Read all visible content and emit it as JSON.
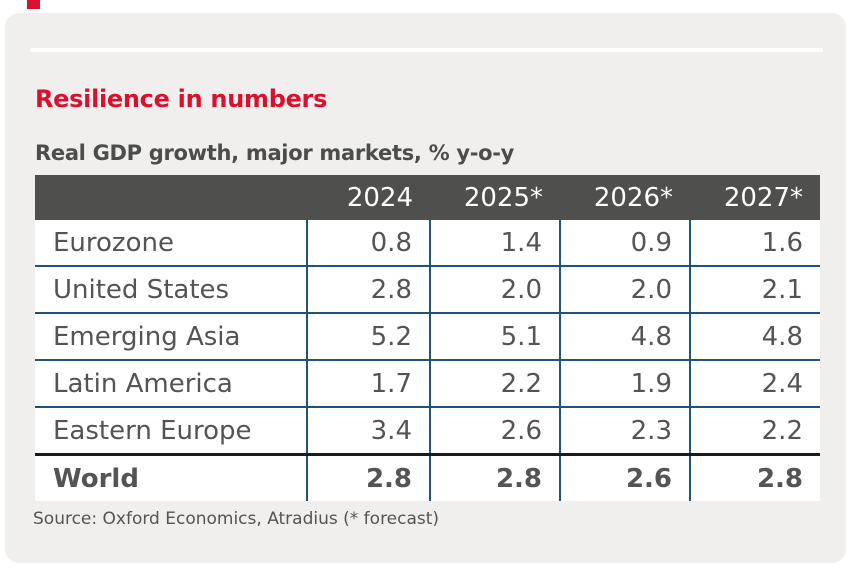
{
  "page": {
    "title": "Resilience in numbers",
    "subtitle": "Real GDP growth, major markets, % y-o-y",
    "source": "Source: Oxford Economics, Atradius (* forecast)"
  },
  "colors": {
    "accent_red": "#d9112e",
    "panel_background": "#f0efed",
    "table_header_background": "#4f4f4e",
    "table_border_blue": "#215377",
    "total_row_border_black": "#1a1a1a",
    "text_gray": "#545453"
  },
  "chart_data": {
    "type": "table",
    "title": "Real GDP growth, major markets, % y-o-y",
    "columns": [
      "",
      "2024",
      "2025*",
      "2026*",
      "2027*"
    ],
    "rows": [
      {
        "label": "Eurozone",
        "values": [
          "0.8",
          "1.4",
          "0.9",
          "1.6"
        ],
        "bold": false
      },
      {
        "label": "United States",
        "values": [
          "2.8",
          "2.0",
          "2.0",
          "2.1"
        ],
        "bold": false
      },
      {
        "label": "Emerging Asia",
        "values": [
          "5.2",
          "5.1",
          "4.8",
          "4.8"
        ],
        "bold": false
      },
      {
        "label": "Latin America",
        "values": [
          "1.7",
          "2.2",
          "1.9",
          "2.4"
        ],
        "bold": false
      },
      {
        "label": "Eastern Europe",
        "values": [
          "3.4",
          "2.6",
          "2.3",
          "2.2"
        ],
        "bold": false
      },
      {
        "label": "World",
        "values": [
          "2.8",
          "2.8",
          "2.6",
          "2.8"
        ],
        "bold": true
      }
    ],
    "source": "Source: Oxford Economics, Atradius (* forecast)",
    "footnote_marker_meaning": "* forecast"
  }
}
